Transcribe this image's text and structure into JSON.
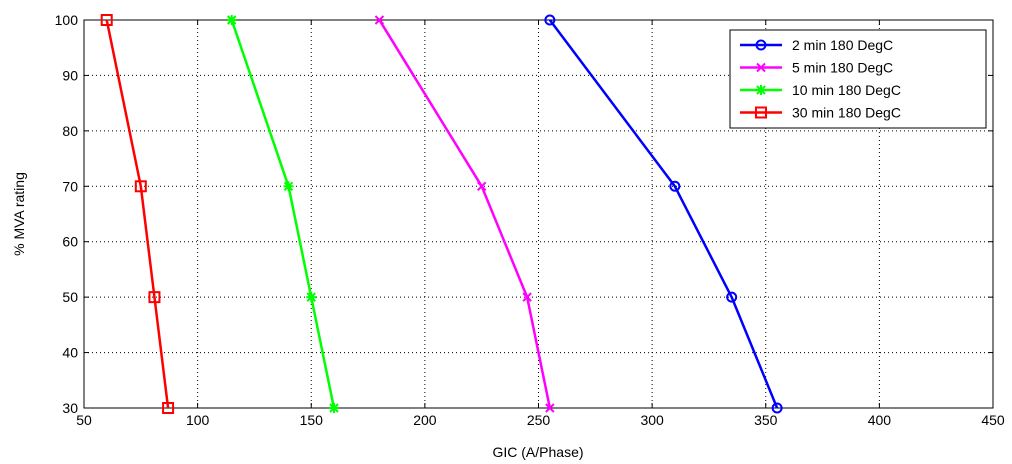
{
  "chart_data": {
    "type": "line",
    "xlabel": "GIC (A/Phase)",
    "ylabel": "% MVA rating",
    "xlim": [
      50,
      450
    ],
    "ylim": [
      30,
      100
    ],
    "xticks": [
      "50",
      "100",
      "150",
      "200",
      "250",
      "300",
      "350",
      "400",
      "450"
    ],
    "yticks": [
      "30",
      "40",
      "50",
      "60",
      "70",
      "80",
      "90",
      "100"
    ],
    "grid": true,
    "legend_position": "top-right",
    "series": [
      {
        "name": "2 min 180 DegC",
        "color": "#0000ff",
        "marker": "circle",
        "x": [
          255,
          310,
          335,
          355
        ],
        "y": [
          100,
          70,
          50,
          30
        ]
      },
      {
        "name": "5 min 180 DegC",
        "color": "#ff00ff",
        "marker": "x",
        "x": [
          180,
          225,
          245,
          255
        ],
        "y": [
          100,
          70,
          50,
          30
        ]
      },
      {
        "name": "10 min 180 DegC",
        "color": "#00ff00",
        "marker": "star",
        "x": [
          115,
          140,
          150,
          160
        ],
        "y": [
          100,
          70,
          50,
          30
        ]
      },
      {
        "name": "30 min 180 DegC",
        "color": "#ff0000",
        "marker": "square",
        "x": [
          60,
          75,
          81,
          87
        ],
        "y": [
          100,
          70,
          50,
          30
        ]
      }
    ]
  }
}
